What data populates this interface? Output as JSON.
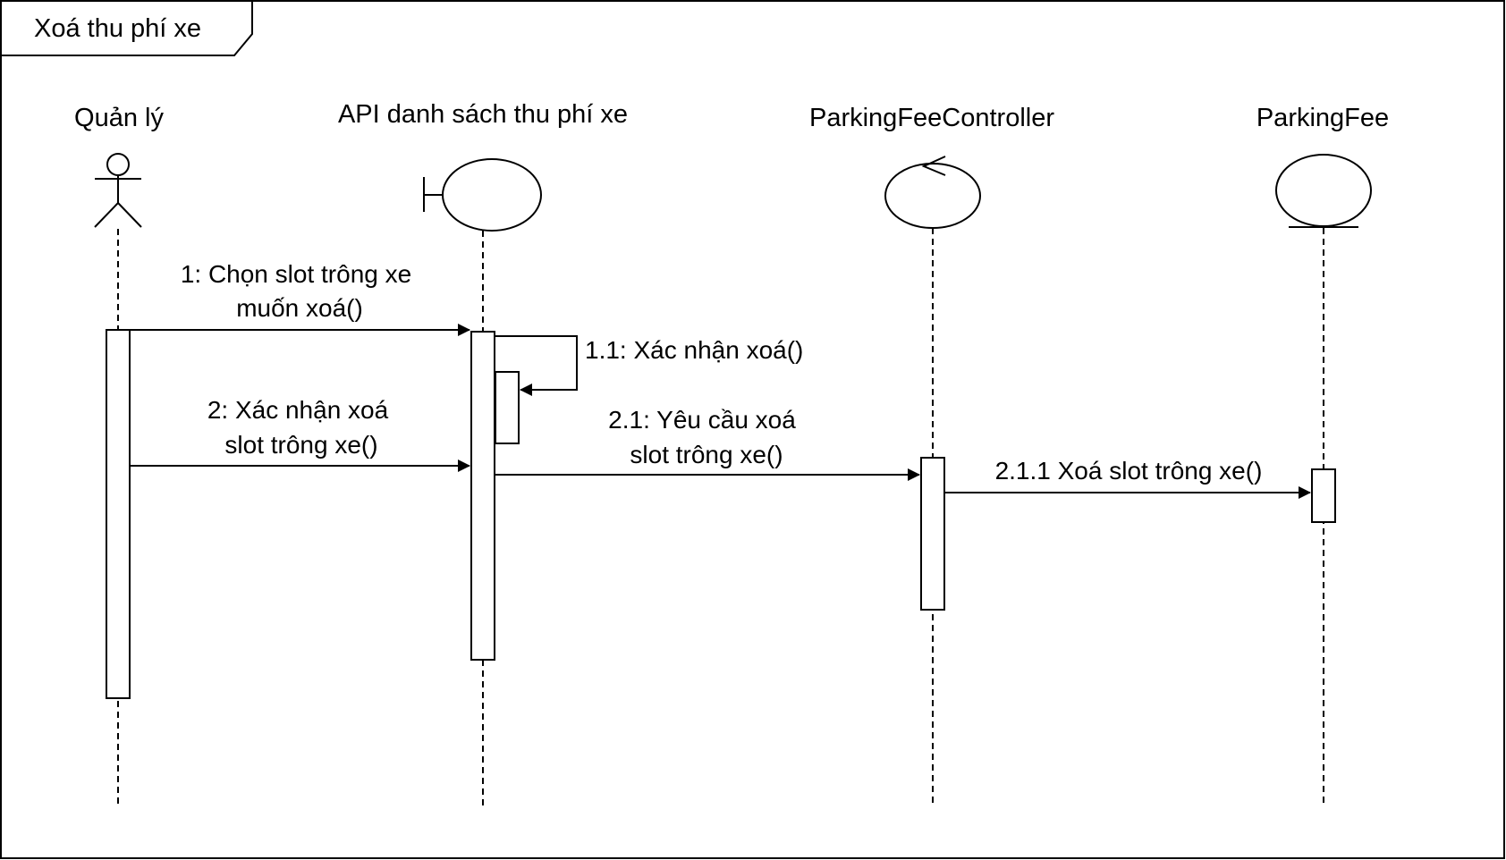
{
  "frame": {
    "title": "Xoá thu phí xe"
  },
  "lifelines": [
    {
      "id": "actor",
      "type": "actor",
      "name": "Quản lý"
    },
    {
      "id": "boundary",
      "type": "boundary",
      "name": "API danh sách thu phí xe"
    },
    {
      "id": "control",
      "type": "control",
      "name": "ParkingFeeController"
    },
    {
      "id": "entity",
      "type": "entity",
      "name": "ParkingFee"
    }
  ],
  "messages": [
    {
      "id": "m1",
      "from": "actor",
      "to": "boundary",
      "lines": [
        "1: Chọn slot trông xe",
        "muốn xoá()"
      ]
    },
    {
      "id": "m11",
      "from": "boundary",
      "to": "boundary",
      "self": true,
      "lines": [
        "1.1: Xác nhận xoá()"
      ]
    },
    {
      "id": "m2",
      "from": "actor",
      "to": "boundary",
      "lines": [
        "2: Xác nhận xoá",
        "slot trông xe()"
      ]
    },
    {
      "id": "m21",
      "from": "boundary",
      "to": "control",
      "lines": [
        "2.1: Yêu cầu xoá",
        "slot trông xe()"
      ]
    },
    {
      "id": "m211",
      "from": "control",
      "to": "entity",
      "lines": [
        "2.1.1 Xoá slot trông xe()"
      ]
    }
  ]
}
